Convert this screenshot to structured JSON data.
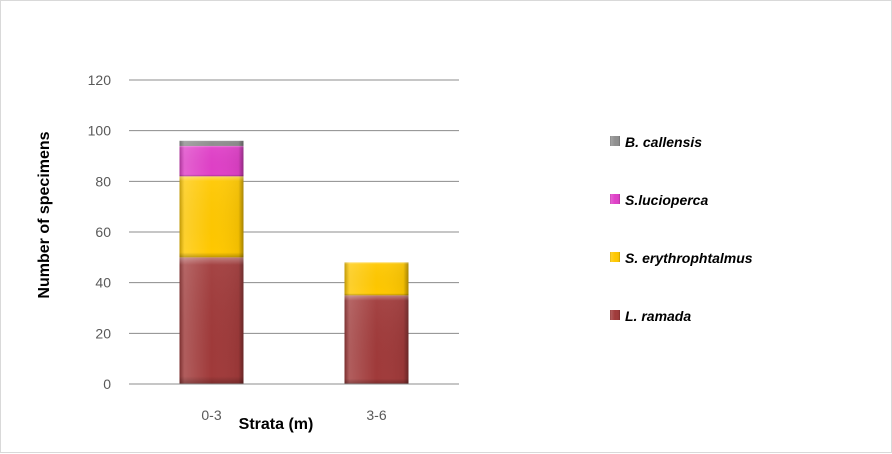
{
  "chart_data": {
    "type": "bar",
    "stacked": true,
    "categories": [
      "0-3",
      "3-6"
    ],
    "series": [
      {
        "name": "L. ramada",
        "values": [
          50,
          35
        ],
        "color": "#A03A3A"
      },
      {
        "name": "S. erythrophtalmus",
        "values": [
          32,
          13
        ],
        "color": "#FFC800"
      },
      {
        "name": "S.lucioperca",
        "values": [
          12,
          0
        ],
        "color": "#E040C8"
      },
      {
        "name": "B. callensis",
        "values": [
          2,
          0
        ],
        "color": "#909090"
      }
    ],
    "xlabel": "Strata (m)",
    "ylabel": "Number of specimens",
    "ylim": [
      0,
      120
    ],
    "yticks": [
      0,
      20,
      40,
      60,
      80,
      100,
      120
    ],
    "grid": true,
    "legend_position": "right"
  }
}
